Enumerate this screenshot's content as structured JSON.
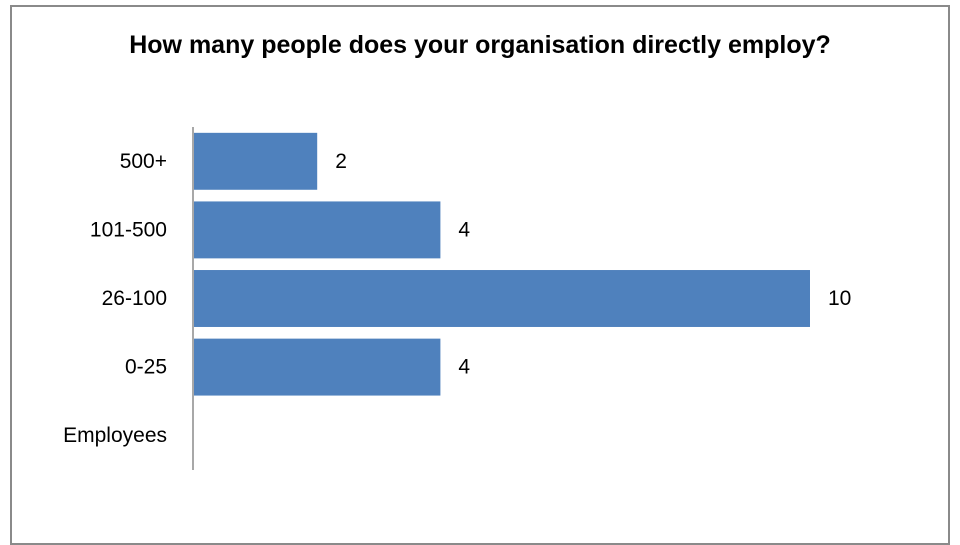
{
  "chart_data": {
    "type": "bar",
    "orientation": "horizontal",
    "title": "How many people does your organisation directly employ?",
    "categories": [
      "Employees",
      "0-25",
      "26-100",
      "101-500",
      "500+"
    ],
    "values": [
      null,
      4,
      10,
      4,
      2
    ],
    "data_labels": [
      "",
      "4",
      "10",
      "4",
      "2"
    ],
    "bar_color": "#4F81BD",
    "xlabel": "",
    "ylabel": "",
    "xlim": [
      0,
      10
    ],
    "grid": false,
    "legend": "none"
  }
}
